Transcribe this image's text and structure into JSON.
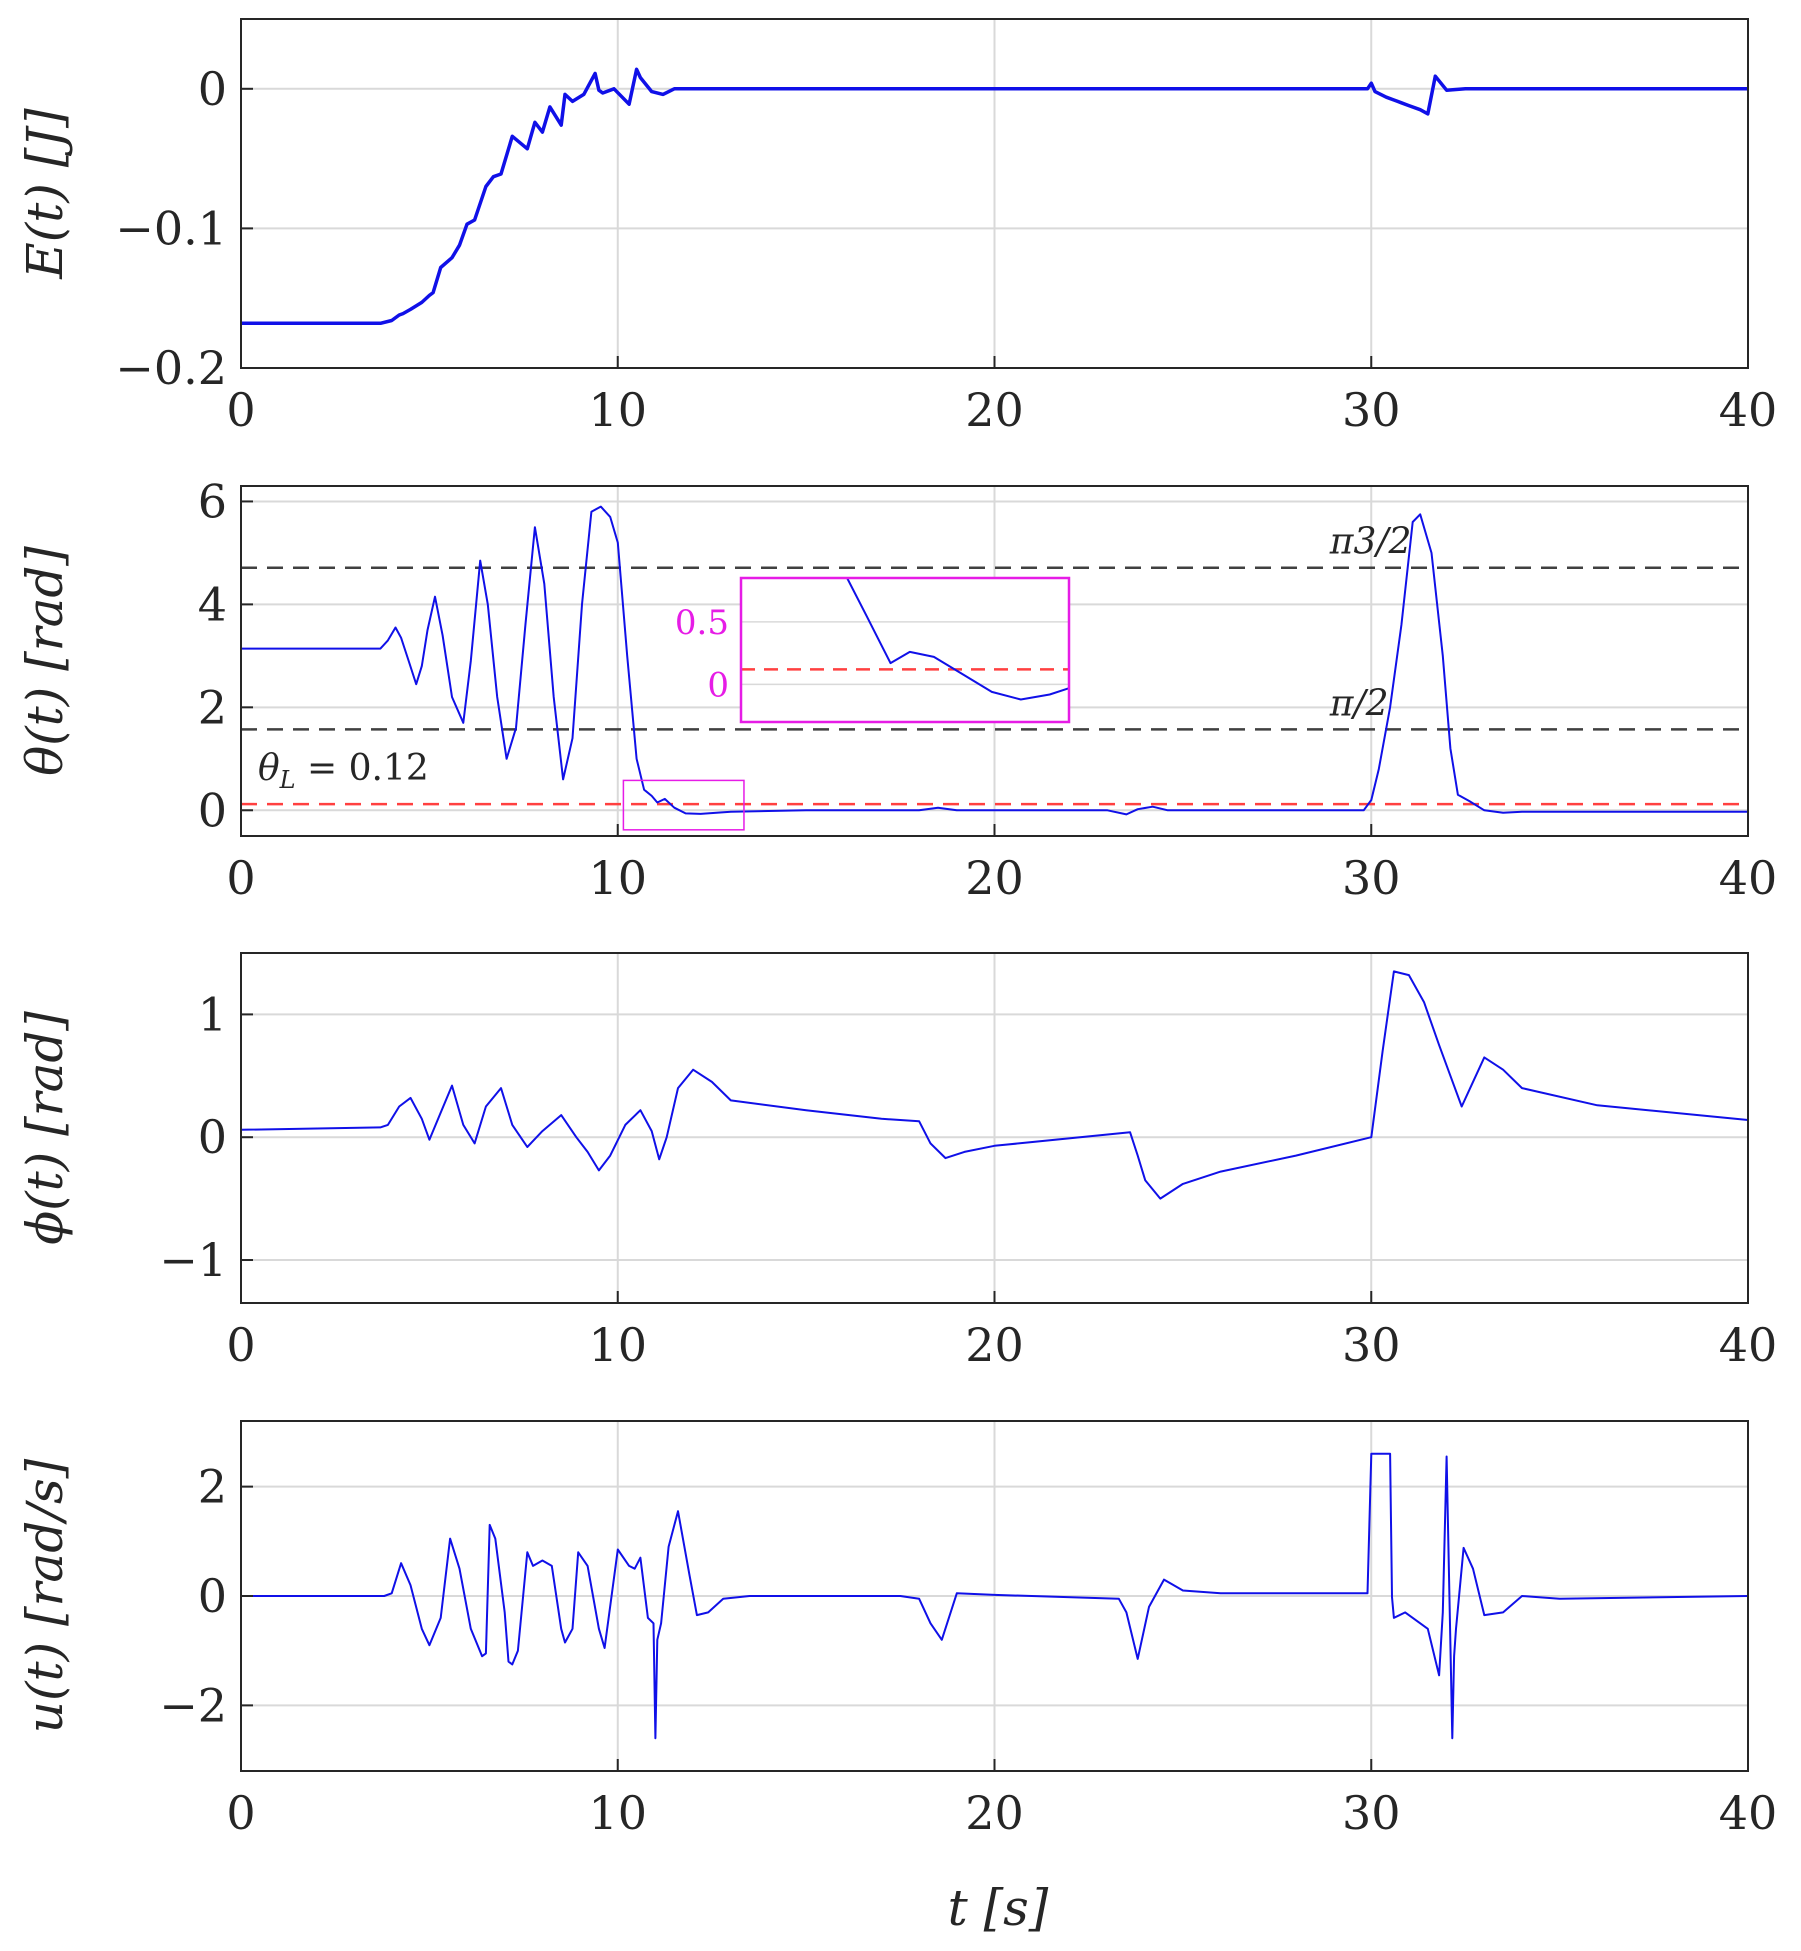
{
  "colors": {
    "line": "#1010e8",
    "grid": "#d9d9d9",
    "axis": "#262626",
    "threshold": "#ff4040",
    "reference": "#404040",
    "inset": "#e61ce6"
  },
  "xlabel": "t [s]",
  "chart_data": [
    {
      "type": "line",
      "ylabel": "E(t) [J]",
      "xlim": [
        0,
        40
      ],
      "ylim": [
        -0.2,
        0.05
      ],
      "xticks": [
        0,
        10,
        20,
        30,
        40
      ],
      "xtick_labels": [
        "0",
        "10",
        "20",
        "30",
        "40"
      ],
      "yticks": [
        -0.2,
        -0.1,
        0
      ],
      "ytick_labels": [
        "−0.2",
        "−0.1",
        "0"
      ],
      "grid": true,
      "series": [
        {
          "name": "E",
          "x": [
            0,
            3.7,
            4.0,
            4.2,
            4.3,
            4.5,
            4.8,
            5.0,
            5.1,
            5.3,
            5.6,
            5.8,
            6.0,
            6.2,
            6.5,
            6.7,
            6.9,
            7.2,
            7.6,
            7.8,
            8.0,
            8.2,
            8.5,
            8.6,
            8.8,
            9.1,
            9.4,
            9.5,
            9.6,
            9.9,
            10.3,
            10.5,
            10.6,
            10.9,
            11.2,
            11.5,
            12,
            20,
            29.9,
            30.0,
            30.1,
            30.4,
            30.6,
            30.8,
            31.0,
            31.3,
            31.5,
            31.7,
            32.0,
            32.5,
            40
          ],
          "y": [
            -0.168,
            -0.168,
            -0.166,
            -0.162,
            -0.161,
            -0.158,
            -0.153,
            -0.148,
            -0.146,
            -0.128,
            -0.121,
            -0.112,
            -0.097,
            -0.094,
            -0.07,
            -0.063,
            -0.061,
            -0.034,
            -0.043,
            -0.024,
            -0.031,
            -0.013,
            -0.026,
            -0.004,
            -0.009,
            -0.004,
            0.011,
            -0.001,
            -0.003,
            0.0,
            -0.011,
            0.014,
            0.008,
            -0.002,
            -0.004,
            0.0,
            0.0,
            0.0,
            0.0,
            0.004,
            -0.002,
            -0.006,
            -0.008,
            -0.01,
            -0.012,
            -0.015,
            -0.018,
            0.009,
            -0.001,
            0.0,
            0.0
          ]
        }
      ]
    },
    {
      "type": "line",
      "ylabel": "θ(t) [rad]",
      "xlim": [
        0,
        40
      ],
      "ylim": [
        -0.5,
        6.3
      ],
      "xticks": [
        0,
        10,
        20,
        30,
        40
      ],
      "xtick_labels": [
        "0",
        "10",
        "20",
        "30",
        "40"
      ],
      "yticks": [
        0,
        2,
        4,
        6
      ],
      "ytick_labels": [
        "0",
        "2",
        "4",
        "6"
      ],
      "grid": true,
      "series": [
        {
          "name": "theta",
          "x": [
            0,
            3.7,
            3.9,
            4.1,
            4.25,
            4.45,
            4.65,
            4.8,
            4.95,
            5.15,
            5.35,
            5.6,
            5.9,
            6.1,
            6.35,
            6.55,
            6.8,
            7.05,
            7.3,
            7.55,
            7.8,
            8.05,
            8.3,
            8.55,
            8.8,
            9.05,
            9.3,
            9.55,
            9.8,
            10.0,
            10.25,
            10.5,
            10.7,
            10.9,
            11.05,
            11.25,
            11.5,
            11.8,
            12.2,
            13,
            15,
            18,
            18.5,
            19,
            20,
            23,
            23.5,
            23.8,
            24.2,
            24.6,
            25,
            29.8,
            30.0,
            30.2,
            30.5,
            30.8,
            31.1,
            31.3,
            31.6,
            31.9,
            32.1,
            32.3,
            32.6,
            33.0,
            33.5,
            34,
            40
          ],
          "y": [
            3.14,
            3.14,
            3.3,
            3.55,
            3.35,
            2.9,
            2.45,
            2.8,
            3.5,
            4.15,
            3.4,
            2.2,
            1.7,
            2.9,
            4.85,
            4.0,
            2.2,
            1.0,
            1.6,
            3.6,
            5.5,
            4.4,
            2.2,
            0.6,
            1.4,
            4.0,
            5.8,
            5.9,
            5.7,
            5.2,
            3.0,
            1.0,
            0.4,
            0.28,
            0.15,
            0.22,
            0.05,
            -0.06,
            -0.07,
            -0.03,
            0,
            0,
            0.05,
            0,
            0,
            0,
            -0.08,
            0.02,
            0.07,
            0.0,
            0,
            0,
            0.2,
            0.8,
            2.0,
            3.6,
            5.6,
            5.75,
            5.0,
            3.0,
            1.2,
            0.3,
            0.18,
            0.0,
            -0.05,
            -0.03,
            -0.03
          ]
        }
      ],
      "reference_lines": [
        {
          "y": 4.712,
          "label": "π3/2",
          "style": "reference"
        },
        {
          "y": 1.571,
          "label": "π/2",
          "style": "reference"
        },
        {
          "y": 0.12,
          "label": "θL = 0.12",
          "style": "threshold"
        }
      ],
      "threshold_label": {
        "symbol": "θ",
        "subscript": "L",
        "text": " = 0.12"
      },
      "inset": {
        "xlim": [
          10,
          13.4
        ],
        "ylim": [
          -0.3,
          0.85
        ],
        "yticks": [
          0,
          0.5
        ],
        "ytick_labels": [
          "0",
          "0.5"
        ],
        "zoom_box": {
          "x": [
            10.15,
            13.35
          ],
          "y": [
            -0.38,
            0.58
          ]
        },
        "threshold_y": 0.12,
        "series_x": [
          11.1,
          11.3,
          11.55,
          11.75,
          12.0,
          12.3,
          12.6,
          12.9,
          13.2,
          13.4
        ],
        "series_y": [
          0.85,
          0.55,
          0.17,
          0.26,
          0.22,
          0.08,
          -0.06,
          -0.12,
          -0.08,
          -0.03
        ]
      }
    },
    {
      "type": "line",
      "ylabel": "ϕ(t) [rad]",
      "xlim": [
        0,
        40
      ],
      "ylim": [
        -1.35,
        1.5
      ],
      "xticks": [
        0,
        10,
        20,
        30,
        40
      ],
      "xtick_labels": [
        "0",
        "10",
        "20",
        "30",
        "40"
      ],
      "yticks": [
        -1,
        0,
        1
      ],
      "ytick_labels": [
        "−1",
        "0",
        "1"
      ],
      "grid": true,
      "series": [
        {
          "name": "phi",
          "x": [
            0,
            3.7,
            3.9,
            4.2,
            4.5,
            4.8,
            5.0,
            5.3,
            5.6,
            5.9,
            6.2,
            6.5,
            6.9,
            7.2,
            7.6,
            8.0,
            8.5,
            8.9,
            9.2,
            9.5,
            9.8,
            10.2,
            10.6,
            10.9,
            11.1,
            11.3,
            11.6,
            12.0,
            12.5,
            13,
            15,
            17,
            18.0,
            18.3,
            18.7,
            19.2,
            20,
            23.6,
            23.8,
            24.0,
            24.4,
            25,
            26,
            28,
            30.0,
            30.3,
            30.6,
            31.0,
            31.4,
            31.8,
            32.1,
            32.4,
            32.7,
            33.0,
            33.5,
            34,
            36,
            40
          ],
          "y": [
            0.06,
            0.08,
            0.1,
            0.25,
            0.32,
            0.15,
            -0.02,
            0.2,
            0.42,
            0.1,
            -0.05,
            0.25,
            0.4,
            0.1,
            -0.08,
            0.05,
            0.18,
            0.0,
            -0.12,
            -0.27,
            -0.15,
            0.1,
            0.22,
            0.05,
            -0.18,
            0.0,
            0.4,
            0.55,
            0.45,
            0.3,
            0.22,
            0.15,
            0.13,
            -0.05,
            -0.17,
            -0.12,
            -0.07,
            0.04,
            -0.15,
            -0.35,
            -0.5,
            -0.38,
            -0.28,
            -0.15,
            0.0,
            0.7,
            1.35,
            1.32,
            1.1,
            0.75,
            0.5,
            0.25,
            0.45,
            0.65,
            0.55,
            0.4,
            0.26,
            0.14
          ]
        }
      ]
    },
    {
      "type": "line",
      "ylabel": "u(t) [rad/s]",
      "xlim": [
        0,
        40
      ],
      "ylim": [
        -3.2,
        3.2
      ],
      "xticks": [
        0,
        10,
        20,
        30,
        40
      ],
      "xtick_labels": [
        "0",
        "10",
        "20",
        "30",
        "40"
      ],
      "yticks": [
        -2,
        0,
        2
      ],
      "ytick_labels": [
        "−2",
        "0",
        "2"
      ],
      "grid": true,
      "series": [
        {
          "name": "u",
          "x": [
            0,
            3.8,
            4.0,
            4.25,
            4.5,
            4.8,
            5.0,
            5.3,
            5.55,
            5.8,
            6.1,
            6.4,
            6.5,
            6.6,
            6.75,
            7.0,
            7.1,
            7.2,
            7.35,
            7.6,
            7.75,
            8.0,
            8.25,
            8.5,
            8.6,
            8.8,
            8.95,
            9.2,
            9.5,
            9.65,
            10.0,
            10.3,
            10.45,
            10.6,
            10.8,
            10.95,
            11.0,
            11.05,
            11.15,
            11.35,
            11.6,
            11.9,
            12.1,
            12.4,
            12.8,
            13.5,
            15,
            17.5,
            18.0,
            18.3,
            18.6,
            19.0,
            20,
            23.3,
            23.5,
            23.8,
            24.1,
            24.5,
            25.0,
            26,
            29.9,
            30.0,
            30.5,
            30.55,
            30.6,
            30.9,
            31.5,
            31.8,
            31.9,
            32.0,
            32.15,
            32.2,
            32.25,
            32.45,
            32.7,
            33,
            33.5,
            34,
            35,
            40
          ],
          "y": [
            0,
            0,
            0.05,
            0.6,
            0.2,
            -0.6,
            -0.9,
            -0.4,
            1.05,
            0.5,
            -0.6,
            -1.1,
            -1.05,
            1.3,
            1.05,
            -0.3,
            -1.2,
            -1.25,
            -1.0,
            0.8,
            0.55,
            0.65,
            0.55,
            -0.6,
            -0.85,
            -0.6,
            0.8,
            0.55,
            -0.6,
            -0.95,
            0.85,
            0.55,
            0.5,
            0.7,
            -0.4,
            -0.5,
            -2.6,
            -0.8,
            -0.5,
            0.9,
            1.55,
            0.4,
            -0.35,
            -0.3,
            -0.05,
            0,
            0,
            0,
            -0.05,
            -0.5,
            -0.8,
            0.05,
            0.02,
            -0.05,
            -0.3,
            -1.15,
            -0.2,
            0.3,
            0.1,
            0.05,
            0.05,
            2.6,
            2.6,
            -0.02,
            -0.4,
            -0.3,
            -0.6,
            -1.45,
            -0.3,
            2.55,
            -2.6,
            -1.1,
            -0.6,
            0.88,
            0.5,
            -0.35,
            -0.3,
            0.0,
            -0.05,
            0.0
          ]
        }
      ]
    }
  ]
}
